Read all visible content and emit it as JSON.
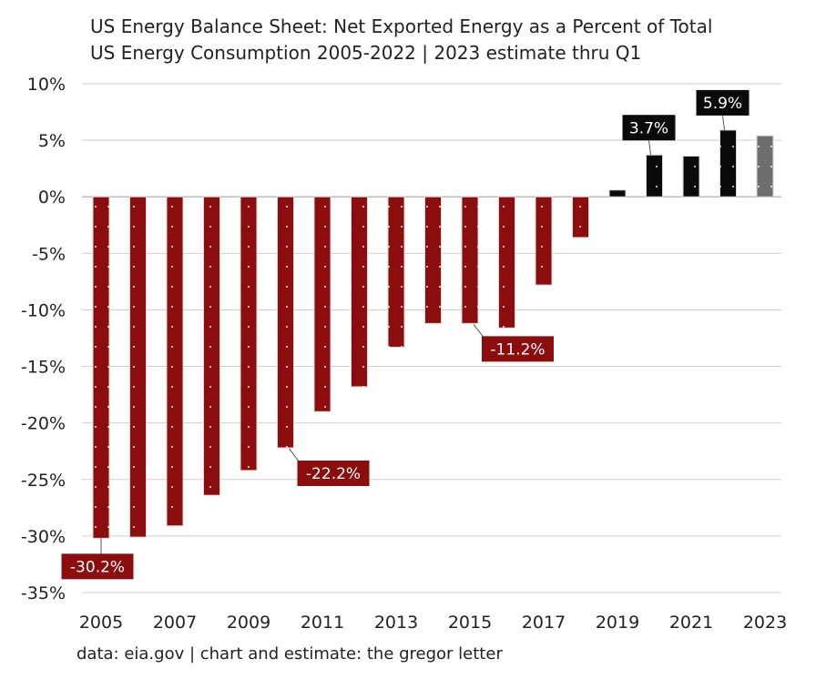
{
  "chart_data": {
    "type": "bar",
    "title": "US Energy Balance Sheet: Net Exported Energy as a Percent of Total",
    "subtitle": "US Energy Consumption 2005-2022 | 2023 estimate thru Q1",
    "source": "data: eia.gov | chart and estimate: the gregor letter",
    "ylim": [
      -35,
      10
    ],
    "ytick_step": 5,
    "ytick_labels": [
      "10%",
      "5%",
      "0%",
      "-5%",
      "-10%",
      "-15%",
      "-20%",
      "-25%",
      "-30%",
      "-35%"
    ],
    "grid": true,
    "x_tick_labels": [
      "2005",
      "2007",
      "2009",
      "2011",
      "2013",
      "2015",
      "2017",
      "2019",
      "2021",
      "2023"
    ],
    "categories": [
      "2005",
      "2006",
      "2007",
      "2008",
      "2009",
      "2010",
      "2011",
      "2012",
      "2013",
      "2014",
      "2015",
      "2016",
      "2017",
      "2018",
      "2019",
      "2020",
      "2021",
      "2022",
      "2023"
    ],
    "values": [
      -30.2,
      -30.1,
      -29.1,
      -26.4,
      -24.2,
      -22.2,
      -19.0,
      -16.8,
      -13.3,
      -11.2,
      -11.2,
      -11.6,
      -7.8,
      -3.6,
      0.6,
      3.7,
      3.6,
      5.9,
      5.4
    ],
    "colors": {
      "negative": "#8b0d0d",
      "positive": "#0a0a0a",
      "estimate": "#6e6e6e"
    },
    "data_labels": [
      {
        "category": "2005",
        "text": "-30.2%"
      },
      {
        "category": "2010",
        "text": "-22.2%"
      },
      {
        "category": "2015",
        "text": "-11.2%"
      },
      {
        "category": "2020",
        "text": "3.7%"
      },
      {
        "category": "2022",
        "text": "5.9%"
      }
    ]
  }
}
